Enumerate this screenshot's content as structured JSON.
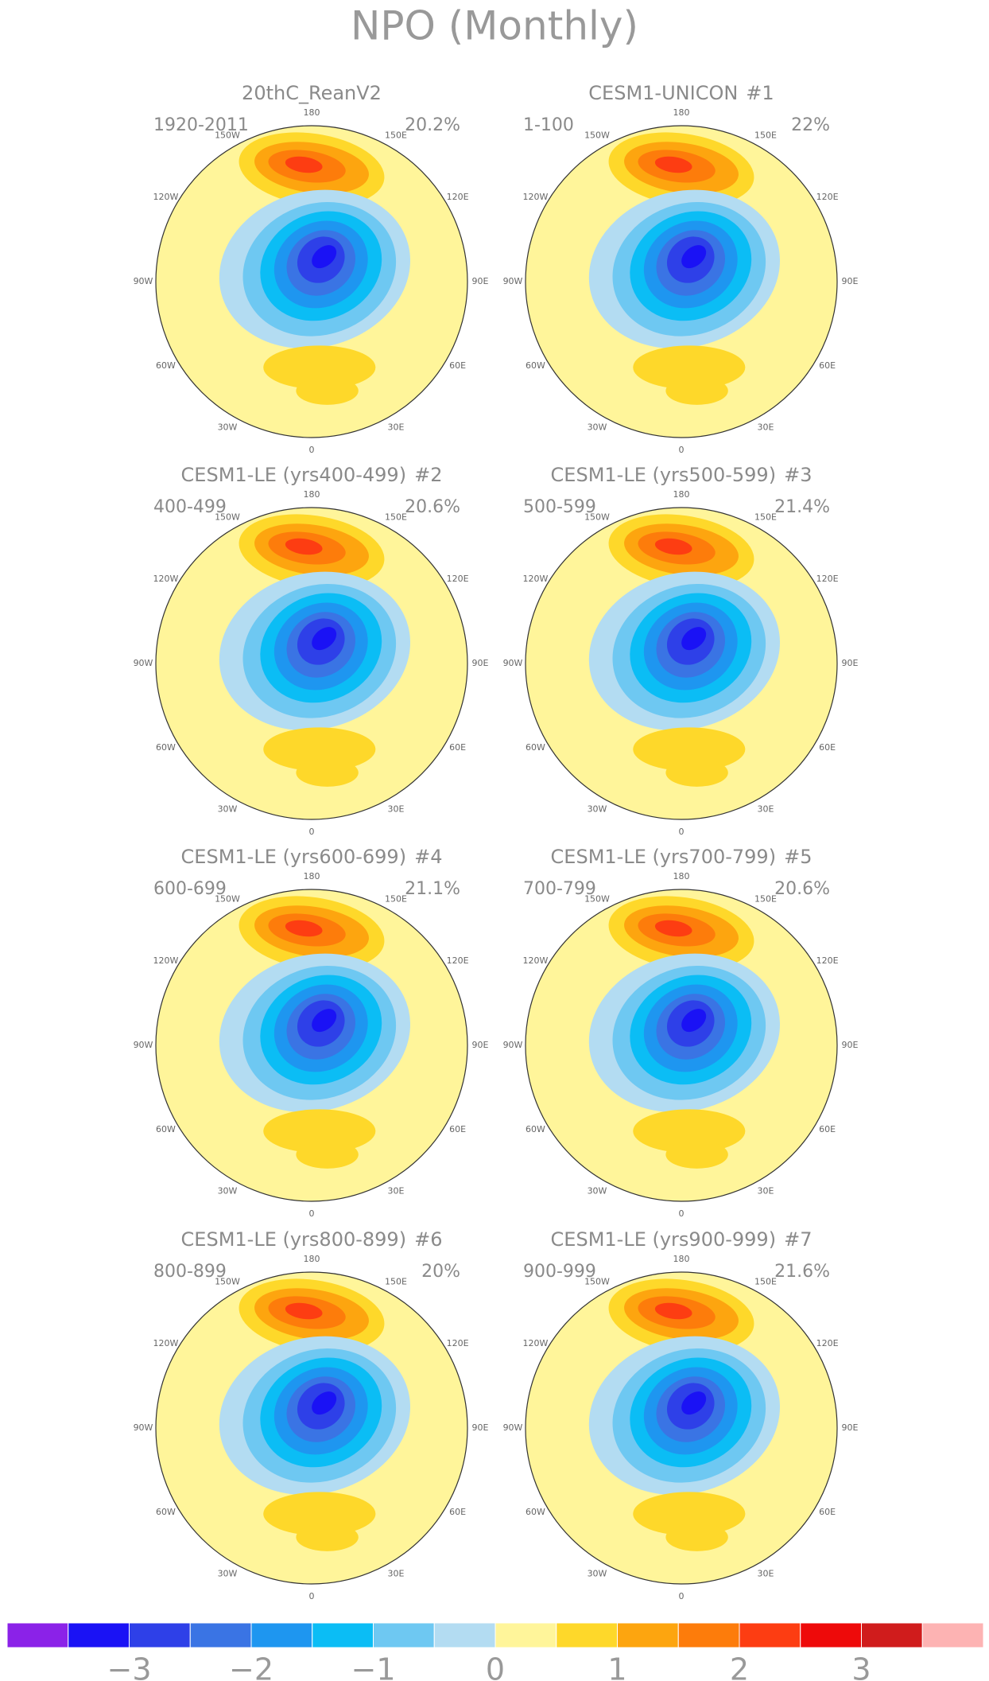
{
  "title": "NPO (Monthly)",
  "longitude_labels": [
    "180",
    "150E",
    "120E",
    "90E",
    "60E",
    "30E",
    "0",
    "30W",
    "60W",
    "90W",
    "120W",
    "150W"
  ],
  "panels": [
    {
      "title": "20thC_ReanV2",
      "period": "1920-2011",
      "variance": "20.2%"
    },
    {
      "title": "CESM1-UNICON",
      "number": "#1",
      "period": "1-100",
      "variance": "22%"
    },
    {
      "title": "CESM1-LE (yrs400-499)",
      "number": "#2",
      "period": "400-499",
      "variance": "20.6%"
    },
    {
      "title": "CESM1-LE (yrs500-599)",
      "number": "#3",
      "period": "500-599",
      "variance": "21.4%"
    },
    {
      "title": "CESM1-LE (yrs600-699)",
      "number": "#4",
      "period": "600-699",
      "variance": "21.1%"
    },
    {
      "title": "CESM1-LE (yrs700-799)",
      "number": "#5",
      "period": "700-799",
      "variance": "20.6%"
    },
    {
      "title": "CESM1-LE (yrs800-899)",
      "number": "#6",
      "period": "800-899",
      "variance": "20%"
    },
    {
      "title": "CESM1-LE (yrs900-999)",
      "number": "#7",
      "period": "900-999",
      "variance": "21.6%"
    }
  ],
  "colorbar": {
    "colors": [
      "#8b22e8",
      "#1a12f5",
      "#2e40e8",
      "#3a74e4",
      "#1e96f0",
      "#0bbdf5",
      "#6ec8f2",
      "#b3dcf2",
      "#fff59a",
      "#fed82a",
      "#fda50f",
      "#fd7c0b",
      "#fd3d12",
      "#ee0a0a",
      "#d01c1c",
      "#fdb3b3"
    ],
    "xlim": [
      -4,
      4
    ],
    "xticks": [
      {
        "value": -3,
        "label": "−3"
      },
      {
        "value": -2,
        "label": "−2"
      },
      {
        "value": -1,
        "label": "−1"
      },
      0,
      1,
      2,
      3
    ]
  }
}
